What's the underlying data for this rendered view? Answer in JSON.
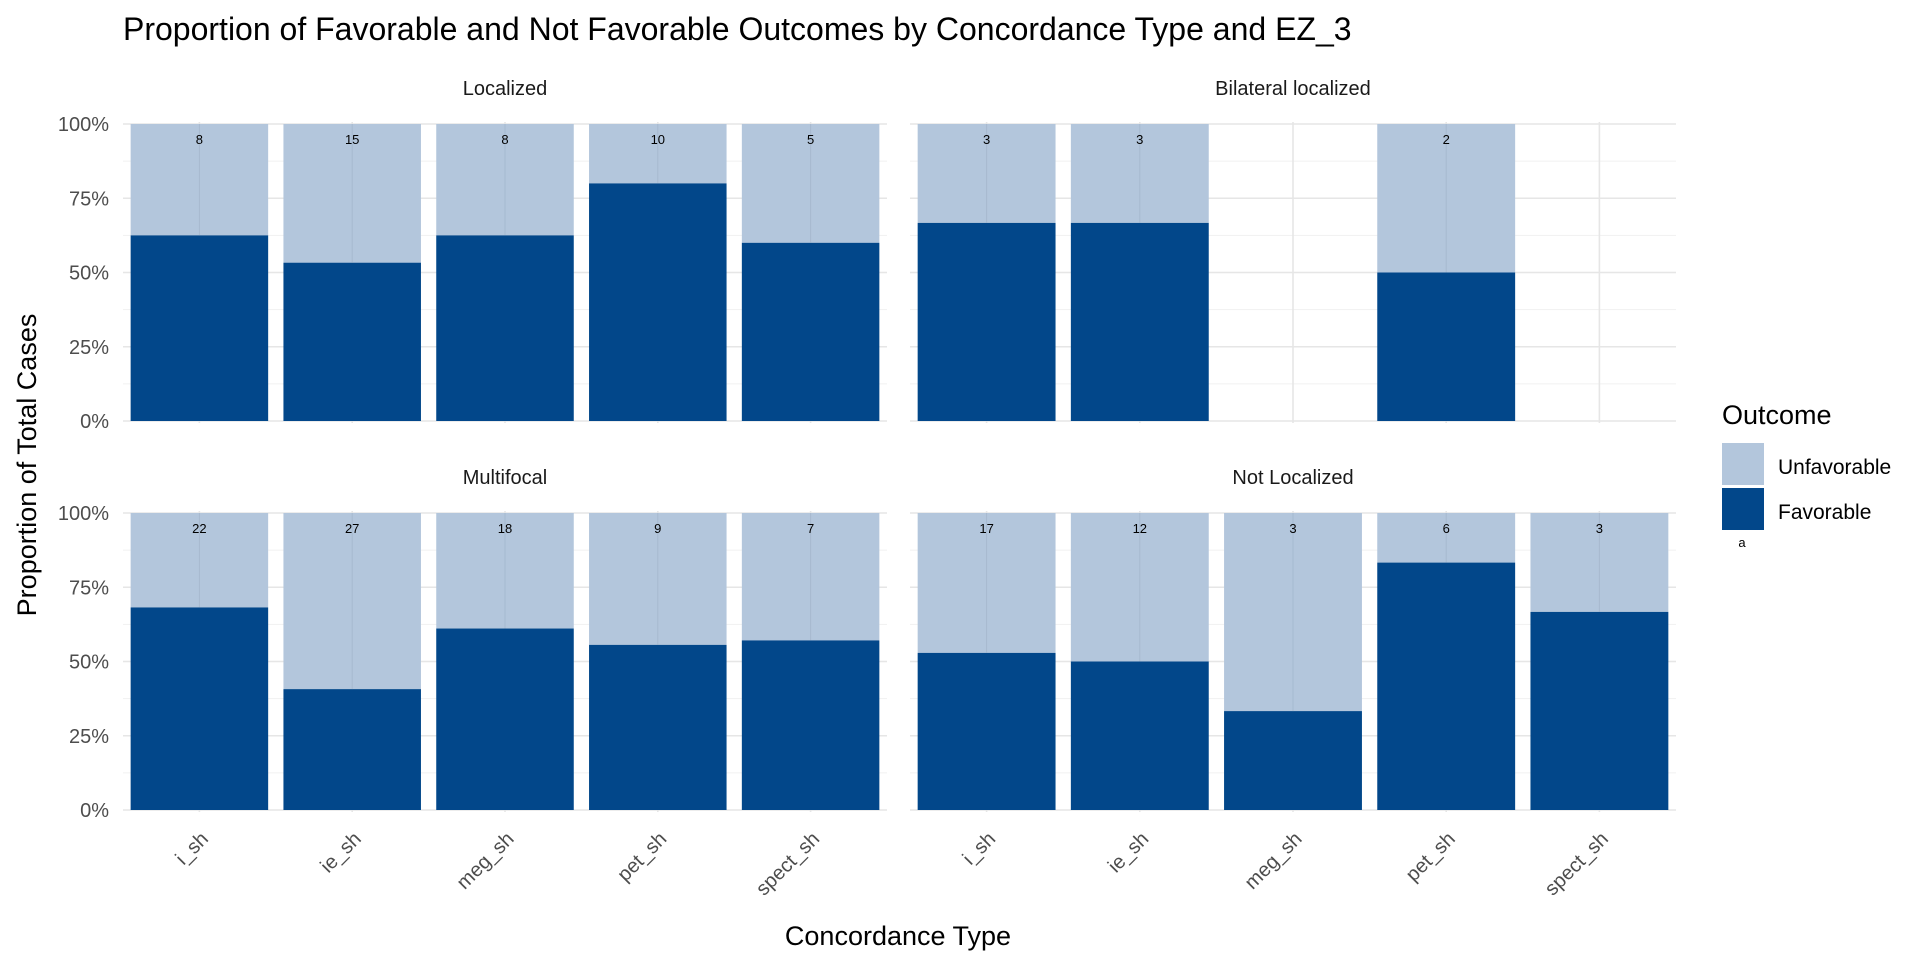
{
  "chart_data": {
    "type": "bar",
    "stacked": true,
    "title": "Proportion of Favorable and Not Favorable Outcomes by Concordance Type and EZ_3",
    "xlabel": "Concordance Type",
    "ylabel": "Proportion of Total Cases",
    "categories": [
      "i_sh",
      "ie_sh",
      "meg_sh",
      "pet_sh",
      "spect_sh"
    ],
    "y_ticks": [
      "0%",
      "25%",
      "50%",
      "75%",
      "100%"
    ],
    "ylim": [
      0,
      1
    ],
    "grid": true,
    "legend": {
      "title": "Outcome",
      "placement": "right",
      "entries": [
        {
          "label": "Unfavorable",
          "color": "#b3c6dc"
        },
        {
          "label": "Favorable",
          "color": "#02478a"
        }
      ],
      "note": "a"
    },
    "colors": {
      "favorable": "#02478a",
      "unfavorable": "#b3c6dc"
    },
    "panels": [
      {
        "title": "Localized",
        "counts": [
          8,
          15,
          8,
          10,
          5
        ],
        "favorable_share": [
          0.625,
          0.533,
          0.625,
          0.8,
          0.6
        ]
      },
      {
        "title": "Bilateral localized",
        "counts": [
          3,
          3,
          null,
          2,
          null
        ],
        "favorable_share": [
          0.667,
          0.667,
          null,
          0.5,
          null
        ]
      },
      {
        "title": "Multifocal",
        "counts": [
          22,
          27,
          18,
          9,
          7
        ],
        "favorable_share": [
          0.682,
          0.407,
          0.611,
          0.556,
          0.571
        ]
      },
      {
        "title": "Not Localized",
        "counts": [
          17,
          12,
          3,
          6,
          3
        ],
        "favorable_share": [
          0.529,
          0.5,
          0.333,
          0.833,
          0.667
        ]
      }
    ]
  }
}
